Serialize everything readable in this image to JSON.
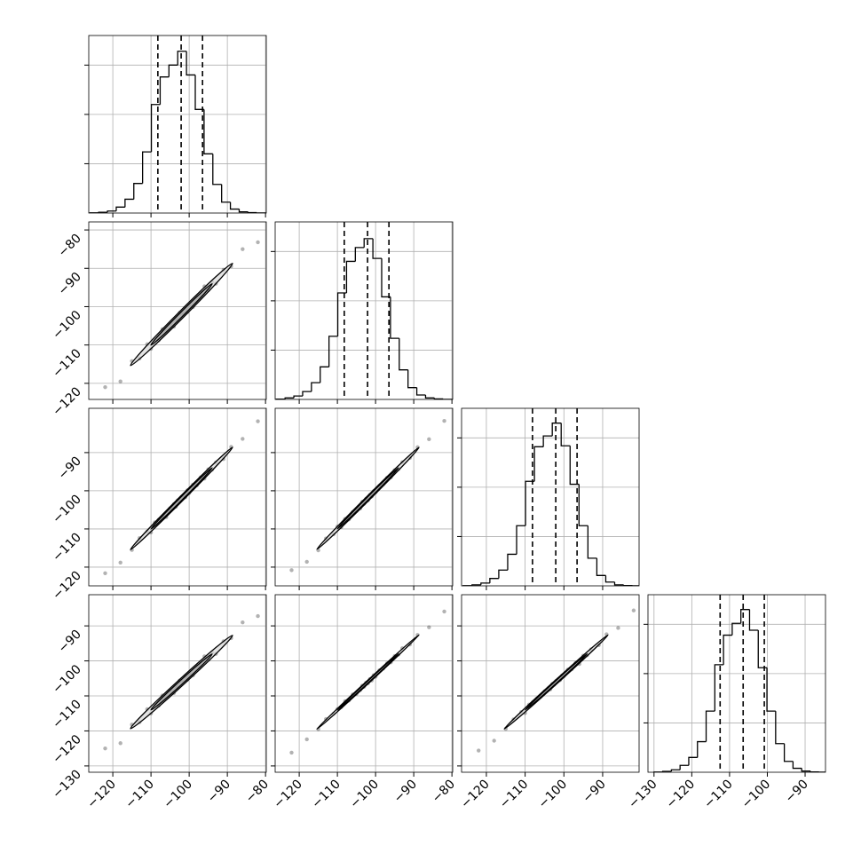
{
  "chart_data": {
    "type": "corner",
    "parameters": [
      {
        "xlim": [
          -126.3,
          -79.8
        ],
        "xticks": [
          {
            "value": -120,
            "label": "−120"
          },
          {
            "value": -110,
            "label": "−110"
          },
          {
            "value": -100,
            "label": "−100"
          },
          {
            "value": -90,
            "label": "−90"
          },
          {
            "value": -80,
            "label": "−80"
          }
        ]
      },
      {
        "xlim": [
          -126.3,
          -79.8
        ],
        "xticks": [
          {
            "value": -120,
            "label": "−120"
          },
          {
            "value": -110,
            "label": "−110"
          },
          {
            "value": -100,
            "label": "−100"
          },
          {
            "value": -90,
            "label": "−90"
          },
          {
            "value": -80,
            "label": "−80"
          }
        ],
        "ylim": [
          -124.2,
          -77.9
        ],
        "yticks": [
          {
            "value": -120,
            "label": "−120"
          },
          {
            "value": -110,
            "label": "−110"
          },
          {
            "value": -100,
            "label": "−100"
          },
          {
            "value": -90,
            "label": "−90"
          },
          {
            "value": -80,
            "label": "−80"
          }
        ]
      },
      {
        "xlim": [
          -126.4,
          -80.6
        ],
        "xticks": [
          {
            "value": -120,
            "label": "−120"
          },
          {
            "value": -110,
            "label": "−110"
          },
          {
            "value": -100,
            "label": "−100"
          },
          {
            "value": -90,
            "label": "−90"
          }
        ],
        "ylim": [
          -124.9,
          -78.4
        ],
        "yticks": [
          {
            "value": -120,
            "label": "−120"
          },
          {
            "value": -110,
            "label": "−110"
          },
          {
            "value": -100,
            "label": "−100"
          },
          {
            "value": -90,
            "label": "−90"
          }
        ]
      },
      {
        "xlim": [
          -131.6,
          -84.6
        ],
        "xticks": [
          {
            "value": -130,
            "label": "−130"
          },
          {
            "value": -120,
            "label": "−120"
          },
          {
            "value": -110,
            "label": "−110"
          },
          {
            "value": -100,
            "label": "−100"
          },
          {
            "value": -90,
            "label": "−90"
          }
        ],
        "ylim": [
          -131.8,
          -81.1
        ],
        "yticks": [
          {
            "value": -130,
            "label": "−130"
          },
          {
            "value": -120,
            "label": "−120"
          },
          {
            "value": -110,
            "label": "−110"
          },
          {
            "value": -100,
            "label": "−100"
          },
          {
            "value": -90,
            "label": "−90"
          }
        ]
      }
    ],
    "histograms": [
      {
        "bins": [
          -126,
          -123.7,
          -121.4,
          -119.1,
          -116.8,
          -114.5,
          -112.2,
          -109.9,
          -107.6,
          -105.3,
          -103,
          -100.7,
          -98.4,
          -96.1,
          -93.8,
          -91.5,
          -89.2,
          -86.9,
          -84.6,
          -82.3,
          -80
        ],
        "counts": [
          2,
          8,
          20,
          60,
          140,
          300,
          620,
          1100,
          1380,
          1500,
          1640,
          1400,
          1050,
          600,
          290,
          110,
          40,
          12,
          4,
          1
        ],
        "ylim": [
          0,
          1800
        ],
        "yticks": [
          500,
          1000,
          1500
        ],
        "quantiles": [
          -108.2,
          -102.1,
          -96.5
        ]
      },
      {
        "bins": [
          -126,
          -123.7,
          -121.4,
          -119.1,
          -116.8,
          -114.5,
          -112.2,
          -109.9,
          -107.6,
          -105.3,
          -103,
          -100.7,
          -98.4,
          -96.1,
          -93.8,
          -91.5,
          -89.2,
          -86.9,
          -84.6,
          -82.3,
          -80
        ],
        "counts": [
          3,
          15,
          35,
          80,
          170,
          330,
          640,
          1080,
          1400,
          1540,
          1630,
          1430,
          1040,
          620,
          300,
          120,
          45,
          15,
          5,
          1
        ],
        "ylim": [
          0,
          1800
        ],
        "yticks": [
          500,
          1000,
          1500
        ],
        "quantiles": [
          -108.2,
          -102.1,
          -96.5
        ]
      },
      {
        "bins": [
          -126,
          -123.7,
          -121.4,
          -119.1,
          -116.8,
          -114.5,
          -112.2,
          -109.9,
          -107.6,
          -105.3,
          -103,
          -100.7,
          -98.4,
          -96.1,
          -93.8,
          -91.5,
          -89.2,
          -86.9,
          -84.6,
          -82.3,
          -80
        ],
        "counts": [
          2,
          10,
          28,
          75,
          160,
          320,
          610,
          1060,
          1410,
          1520,
          1650,
          1420,
          1030,
          610,
          280,
          105,
          38,
          10,
          3,
          1
        ],
        "ylim": [
          0,
          1800
        ],
        "yticks": [
          500,
          1000,
          1500
        ],
        "quantiles": [
          -108.1,
          -102.1,
          -96.6
        ]
      },
      {
        "bins": [
          -130,
          -127.7,
          -125.4,
          -123.1,
          -120.8,
          -118.5,
          -116.2,
          -113.9,
          -111.6,
          -109.3,
          -107,
          -104.7,
          -102.4,
          -100.1,
          -97.8,
          -95.5,
          -93.2,
          -90.9,
          -88.6,
          -86.3,
          -84
        ],
        "counts": [
          2,
          9,
          25,
          70,
          150,
          310,
          620,
          1090,
          1390,
          1510,
          1650,
          1440,
          1060,
          620,
          290,
          110,
          40,
          12,
          3,
          1
        ],
        "ylim": [
          0,
          1800
        ],
        "yticks": [
          500,
          1000,
          1500
        ],
        "quantiles": [
          -112.5,
          -106.4,
          -100.8
        ]
      }
    ],
    "scatter": [
      {
        "x": [
          -122,
          -118,
          -115,
          -113,
          -111,
          -110,
          -109,
          -108,
          -107,
          -106,
          -105,
          -104,
          -103.5,
          -103,
          -102.5,
          -102,
          -101.5,
          -101,
          -100.5,
          -100,
          -99,
          -98,
          -97,
          -96,
          -95,
          -94,
          -93,
          -91,
          -89,
          -86,
          -82
        ],
        "y": [
          -121,
          -119.5,
          -114.2,
          -113.5,
          -109.8,
          -111,
          -108.6,
          -108.8,
          -105.9,
          -106.3,
          -104.4,
          -105.2,
          -103.3,
          -103.6,
          -101.6,
          -102,
          -101.9,
          -100.3,
          -101.4,
          -99.7,
          -100.1,
          -97.5,
          -97.2,
          -94.7,
          -95.7,
          -93.6,
          -94,
          -90.4,
          -89.5,
          -85,
          -83.2
        ]
      },
      {
        "x": [
          -122,
          -118,
          -115,
          -113,
          -111,
          -110,
          -109,
          -108,
          -107,
          -106,
          -105,
          -104,
          -103.5,
          -103,
          -102.5,
          -102,
          -101.5,
          -101,
          -100.5,
          -100,
          -99,
          -98,
          -97,
          -96,
          -95,
          -94,
          -93,
          -91,
          -89,
          -86,
          -82
        ],
        "y": [
          -121.6,
          -118.8,
          -115.5,
          -112.4,
          -110.7,
          -110.9,
          -108.3,
          -107.6,
          -106.8,
          -106.9,
          -104.6,
          -103.5,
          -104.2,
          -102.5,
          -102.9,
          -101.6,
          -101.2,
          -101.7,
          -99.9,
          -100.6,
          -98.4,
          -98.6,
          -96.5,
          -96.8,
          -94.4,
          -94.5,
          -92.6,
          -91.7,
          -88.5,
          -86.4,
          -81.8
        ]
      },
      {
        "x": [
          -122,
          -118,
          -115,
          -113,
          -111,
          -110,
          -109,
          -108,
          -107,
          -106,
          -105,
          -104,
          -103.5,
          -103,
          -102.5,
          -102,
          -101.5,
          -101,
          -100.5,
          -100,
          -99,
          -98,
          -97,
          -96,
          -95,
          -94,
          -93,
          -91,
          -89,
          -86,
          -82
        ],
        "y": [
          -120.8,
          -118.6,
          -115.6,
          -112.5,
          -111.4,
          -109.4,
          -109.5,
          -107.4,
          -107.5,
          -105.6,
          -105.3,
          -104.6,
          -102.9,
          -103.4,
          -102.1,
          -102.5,
          -101.1,
          -101.5,
          -100.1,
          -100.4,
          -98.7,
          -98.3,
          -96.6,
          -96.5,
          -94.6,
          -94.3,
          -92.5,
          -91.4,
          -88.6,
          -86.5,
          -81.7
        ]
      },
      {
        "x": [
          -122,
          -118,
          -115,
          -113,
          -111,
          -110,
          -109,
          -108,
          -107,
          -106,
          -105,
          -104,
          -103.5,
          -103,
          -102.5,
          -102,
          -101.5,
          -101,
          -100.5,
          -100,
          -99,
          -98,
          -97,
          -96,
          -95,
          -94,
          -93,
          -91,
          -89,
          -86,
          -82
        ],
        "y": [
          -125,
          -123.5,
          -118.2,
          -117.5,
          -113.8,
          -115,
          -112.6,
          -112.8,
          -109.9,
          -110.3,
          -108.4,
          -109.2,
          -107.3,
          -107.6,
          -105.6,
          -106,
          -105.9,
          -104.3,
          -105.4,
          -103.7,
          -104.1,
          -101.5,
          -101.2,
          -98.7,
          -99.7,
          -97.6,
          -98,
          -94.4,
          -93.5,
          -89,
          -87.2
        ]
      },
      {
        "x": [
          -122,
          -118,
          -115,
          -113,
          -111,
          -110,
          -109,
          -108,
          -107,
          -106,
          -105,
          -104,
          -103.5,
          -103,
          -102.5,
          -102,
          -101.5,
          -101,
          -100.5,
          -100,
          -99,
          -98,
          -97,
          -96,
          -95,
          -94,
          -93,
          -91,
          -89,
          -86,
          -82
        ],
        "y": [
          -126.2,
          -122.4,
          -119.5,
          -116.6,
          -115.1,
          -113.8,
          -113.2,
          -111.5,
          -111.3,
          -109.6,
          -109.4,
          -108.3,
          -107.1,
          -107.4,
          -106.2,
          -106.4,
          -105.2,
          -105.6,
          -104.1,
          -104.5,
          -102.7,
          -102.2,
          -100.7,
          -100.4,
          -98.6,
          -98.2,
          -96.4,
          -95.3,
          -92.6,
          -90.4,
          -85.9
        ]
      },
      {
        "x": [
          -122,
          -118,
          -115,
          -113,
          -111,
          -110,
          -109,
          -108,
          -107,
          -106,
          -105,
          -104,
          -103.5,
          -103,
          -102.5,
          -102,
          -101.5,
          -101,
          -100.5,
          -100,
          -99,
          -98,
          -97,
          -96,
          -95,
          -94,
          -93,
          -91,
          -89,
          -86,
          -82
        ],
        "y": [
          -125.6,
          -122.8,
          -119.4,
          -116.7,
          -114.6,
          -114.9,
          -112.5,
          -111.8,
          -110.8,
          -110.2,
          -108.7,
          -107.8,
          -108.1,
          -106.6,
          -106.8,
          -105.7,
          -105.3,
          -105.5,
          -104.2,
          -104.4,
          -102.5,
          -102.4,
          -100.6,
          -100.9,
          -98.5,
          -98.4,
          -96.7,
          -95.5,
          -92.4,
          -90.6,
          -85.6
        ]
      }
    ]
  }
}
